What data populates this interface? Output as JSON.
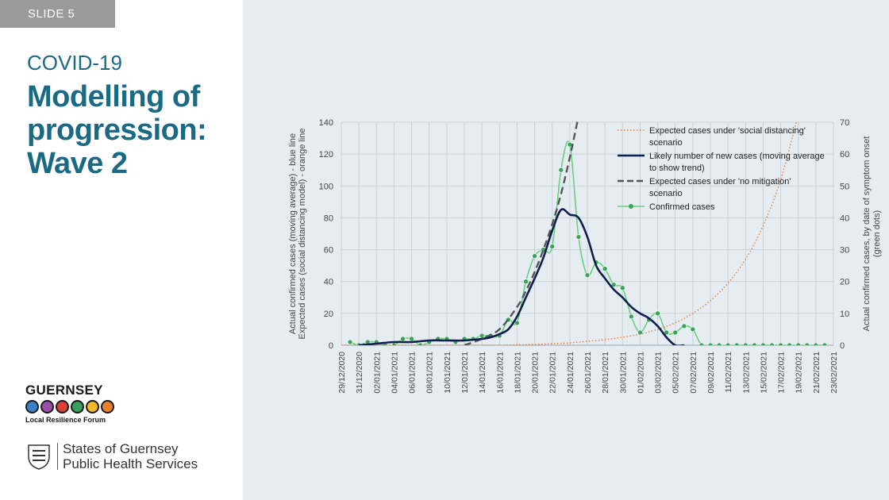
{
  "slide": {
    "tag": "SLIDE 5",
    "subtitle": "COVID-19",
    "title_lines": [
      "Modelling of",
      "progression:",
      "Wave 2"
    ]
  },
  "logos": {
    "lrf_name": "GUERNSEY",
    "lrf_sub": "Local Resilience Forum",
    "sog_line1": "States of Guernsey",
    "sog_line2": "Public Health Services"
  },
  "colors": {
    "title": "#1b6a85",
    "likely": "#0f1f4e",
    "no_mitigation": "#555555",
    "social_distancing": "#e07b3a",
    "confirmed": "#6ccf80",
    "confirmed_dot": "#3aa35a"
  },
  "chart_data": {
    "type": "line",
    "title": "",
    "xlabel": "",
    "ylabel_left": [
      "Actual confirmed cases (moving average) - blue line",
      "Expected cases (social distancing model) - orange line"
    ],
    "ylabel_right": [
      "Actual confirmed cases, by date of symptom onset",
      "(green dots)"
    ],
    "ylim_left": [
      0,
      140
    ],
    "ylim_right": [
      0,
      70
    ],
    "yticks_left": [
      0,
      20,
      40,
      60,
      80,
      100,
      120,
      140
    ],
    "yticks_right": [
      0,
      10,
      20,
      30,
      40,
      50,
      60,
      70
    ],
    "x_start": "29/12/2020",
    "x_tick_labels": [
      "29/12/2020",
      "31/12/2020",
      "02/01/2021",
      "04/01/2021",
      "06/01/2021",
      "08/01/2021",
      "10/01/2021",
      "12/01/2021",
      "14/01/2021",
      "16/01/2021",
      "18/01/2021",
      "20/01/2021",
      "22/01/2021",
      "24/01/2021",
      "26/01/2021",
      "28/01/2021",
      "30/01/2021",
      "01/02/2021",
      "03/02/2021",
      "05/02/2021",
      "07/02/2021",
      "09/02/2021",
      "11/02/2021",
      "13/02/2021",
      "15/02/2021",
      "17/02/2021",
      "19/02/2021",
      "21/02/2021",
      "23/02/2021"
    ],
    "grid": true,
    "legend_position": "top-right",
    "series": [
      {
        "name": "Expected cases under 'social distancing' scenario",
        "style": "dotted",
        "axis": "left",
        "x": [
          0,
          6,
          10,
          14,
          18,
          22,
          24,
          26,
          28,
          30,
          32,
          34,
          36,
          38,
          40,
          42,
          44,
          46,
          48,
          50,
          52
        ],
        "values": [
          0,
          0,
          0,
          0,
          0,
          0.5,
          1,
          1.5,
          2.5,
          3.5,
          5,
          7,
          10,
          14,
          20,
          28,
          39,
          54,
          75,
          104,
          145
        ]
      },
      {
        "name": "Likely number of new cases (moving average to show trend)",
        "style": "solid",
        "axis": "left",
        "x": [
          2,
          4,
          6,
          8,
          10,
          12,
          14,
          16,
          17,
          18,
          19,
          20,
          21,
          22,
          23,
          24,
          25,
          26,
          27,
          28,
          29,
          30,
          31,
          32,
          33,
          34,
          35,
          36,
          37,
          38,
          39
        ],
        "values": [
          0,
          1,
          2,
          2,
          3,
          3,
          3,
          4,
          5,
          7,
          10,
          18,
          30,
          42,
          55,
          72,
          85,
          82,
          80,
          68,
          50,
          42,
          35,
          30,
          24,
          20,
          17,
          12,
          5,
          0,
          0
        ]
      },
      {
        "name": "Expected cases under 'no mitigation' scenario",
        "style": "dashed",
        "axis": "left",
        "x": [
          14,
          16,
          18,
          20,
          21,
          22,
          23,
          24,
          25,
          26,
          27
        ],
        "values": [
          0,
          4,
          10,
          24,
          34,
          46,
          60,
          76,
          95,
          118,
          144
        ]
      },
      {
        "name": "Confirmed cases",
        "style": "solid-dots",
        "axis": "right",
        "x": [
          1,
          2,
          3,
          4,
          5,
          6,
          7,
          8,
          9,
          10,
          11,
          12,
          13,
          14,
          15,
          16,
          17,
          18,
          19,
          20,
          21,
          22,
          23,
          24,
          25,
          26,
          27,
          28,
          29,
          30,
          31,
          32,
          33,
          34,
          35,
          36,
          37,
          38,
          39,
          40,
          41,
          42,
          43,
          44,
          45,
          46,
          47,
          48,
          49,
          50,
          51,
          52,
          53,
          54,
          55
        ],
        "values": [
          1,
          0,
          1,
          1,
          0,
          0,
          2,
          2,
          0,
          1,
          2,
          2,
          1,
          2,
          2,
          3,
          3,
          3,
          8,
          7,
          20,
          28,
          30,
          31,
          55,
          63,
          34,
          22,
          26,
          24,
          19,
          18,
          9,
          4,
          8,
          10,
          4,
          4,
          6,
          5,
          0,
          0,
          0,
          0,
          0,
          0,
          0,
          0,
          0,
          0,
          0,
          0,
          0,
          0,
          0
        ]
      }
    ],
    "legend": [
      {
        "lines": [
          "Expected cases under 'social distancing'",
          "scenario"
        ]
      },
      {
        "lines": [
          "Likely number of new cases (moving average",
          "to show trend)"
        ]
      },
      {
        "lines": [
          "Expected cases under 'no mitigation'",
          "scenario"
        ]
      },
      {
        "lines": [
          "Confirmed cases"
        ]
      }
    ]
  }
}
